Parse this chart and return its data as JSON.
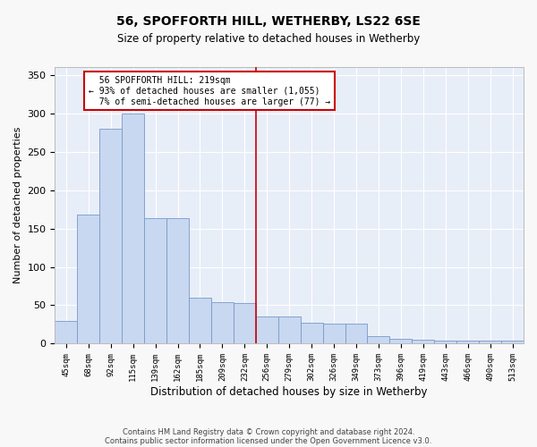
{
  "title": "56, SPOFFORTH HILL, WETHERBY, LS22 6SE",
  "subtitle": "Size of property relative to detached houses in Wetherby",
  "xlabel": "Distribution of detached houses by size in Wetherby",
  "ylabel": "Number of detached properties",
  "bar_values": [
    30,
    168,
    280,
    300,
    163,
    163,
    60,
    54,
    53,
    35,
    35,
    27,
    26,
    26,
    10,
    6,
    5,
    4,
    4,
    4,
    4
  ],
  "categories": [
    "45sqm",
    "68sqm",
    "92sqm",
    "115sqm",
    "139sqm",
    "162sqm",
    "185sqm",
    "209sqm",
    "232sqm",
    "256sqm",
    "279sqm",
    "302sqm",
    "326sqm",
    "349sqm",
    "373sqm",
    "396sqm",
    "419sqm",
    "443sqm",
    "466sqm",
    "490sqm",
    "513sqm"
  ],
  "bar_color": "#c8d8f0",
  "bar_edge_color": "#7799cc",
  "property_label": "56 SPOFFORTH HILL: 219sqm",
  "pct_smaller": 93,
  "n_smaller": 1055,
  "pct_larger_semi": 7,
  "n_larger_semi": 77,
  "vline_color": "#cc0000",
  "vline_bin_index": 8.5,
  "ylim": [
    0,
    360
  ],
  "yticks": [
    0,
    50,
    100,
    150,
    200,
    250,
    300,
    350
  ],
  "bg_color": "#e8eef8",
  "grid_color": "#ffffff",
  "fig_facecolor": "#f8f8f8",
  "footer_line1": "Contains HM Land Registry data © Crown copyright and database right 2024.",
  "footer_line2": "Contains public sector information licensed under the Open Government Licence v3.0."
}
